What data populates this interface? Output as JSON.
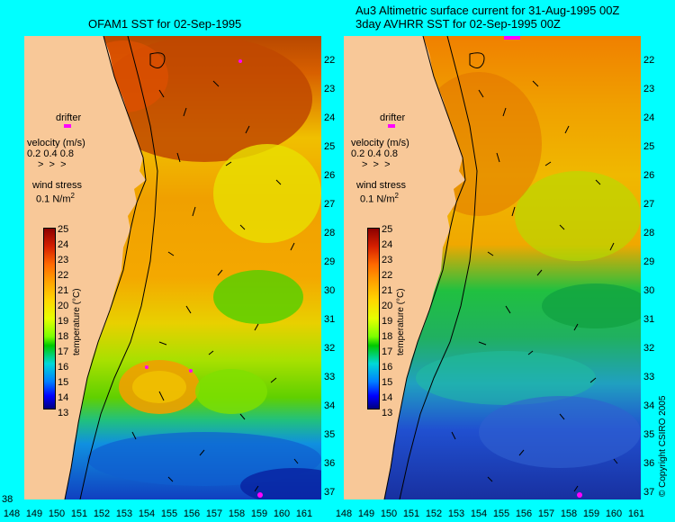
{
  "titles": {
    "left": "OFAM1 SST for 02-Sep-1995",
    "right_line1": "Au3 Altimetric surface current for 31-Aug-1995 00Z",
    "right_line2": "3day AVHRR SST for 02-Sep-1995 00Z"
  },
  "legend": {
    "drifter": "drifter",
    "velocity_label": "velocity (m/s)",
    "velocity_scale": "0.2 0.4 0.8",
    "wind_label": "wind stress",
    "wind_value": "0.1 N/m",
    "wind_sup": "2",
    "temperature_unit": "temperature (°C)"
  },
  "colorbar_ticks": [
    "25",
    "24",
    "23",
    "22",
    "21",
    "20",
    "19",
    "18",
    "17",
    "16",
    "15",
    "14",
    "13"
  ],
  "lat_ticks": [
    "22",
    "23",
    "24",
    "25",
    "26",
    "27",
    "28",
    "29",
    "30",
    "31",
    "32",
    "33",
    "34",
    "35",
    "36",
    "37",
    "38"
  ],
  "lon_ticks": [
    "148",
    "149",
    "150",
    "151",
    "152",
    "153",
    "154",
    "155",
    "156",
    "157",
    "158",
    "159",
    "160",
    "161"
  ],
  "copyright": "© Copyright CSIRO 2005",
  "colors": {
    "background": "#00ffff",
    "land": "#f8c898",
    "drifter": "#ff00ff"
  }
}
